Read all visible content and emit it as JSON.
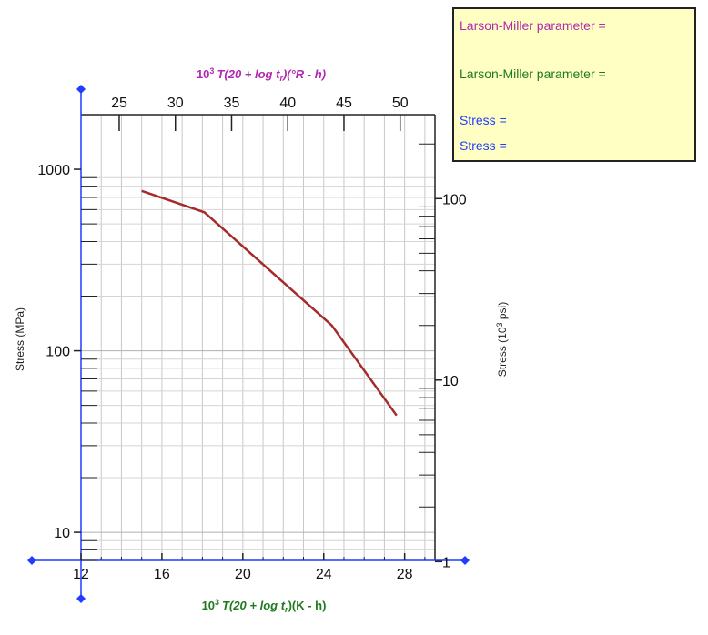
{
  "chart_data": {
    "type": "line",
    "title": "",
    "x_bottom": {
      "label_prefix": "10",
      "label_exp": "3",
      "label_main": "T(20 + log ",
      "label_var": "t",
      "label_sub": "r",
      "label_suffix": ")(K - h)",
      "range": [
        12,
        29.5
      ],
      "ticks": [
        12,
        16,
        20,
        24,
        28
      ],
      "tick_labels": [
        "12",
        "16",
        "20",
        "24",
        "28"
      ]
    },
    "x_top": {
      "label_prefix": "10",
      "label_exp": "3",
      "label_main": "T(20 + log ",
      "label_var": "t",
      "label_sub": "r",
      "label_suffix": ")(°R - h)",
      "ticks": [
        25,
        30,
        35,
        40,
        45,
        50
      ],
      "tick_labels": [
        "25",
        "30",
        "35",
        "40",
        "45",
        "50"
      ]
    },
    "y_left": {
      "label": "Stress (MPa)",
      "scale": "log",
      "range": [
        7,
        2000
      ],
      "ticks": [
        10,
        100,
        1000
      ],
      "tick_labels": [
        "10",
        "100",
        "1000"
      ]
    },
    "y_right": {
      "label_prefix": "Stress (10",
      "label_exp": "3",
      "label_suffix": " psi)",
      "scale": "log",
      "ticks": [
        1,
        10,
        100
      ],
      "tick_labels": [
        "1",
        "10",
        "100"
      ]
    },
    "grid": true,
    "series": [
      {
        "color": "#a52a2a",
        "points": [
          [
            15.0,
            760
          ],
          [
            18.1,
            580
          ],
          [
            24.4,
            138
          ],
          [
            27.6,
            44
          ]
        ]
      }
    ]
  },
  "info_panel": {
    "lmp_label_1": "Larson-Miller parameter =",
    "lmp_label_2": "Larson-Miller parameter =",
    "stress_label_1": "Stress =",
    "stress_label_2": "Stress ="
  },
  "colors": {
    "purple": "#b02ab0",
    "green": "#1e7a1e",
    "blue": "#1f3cff",
    "curve": "#a52a2a",
    "panel_bg": "#ffffc4"
  }
}
